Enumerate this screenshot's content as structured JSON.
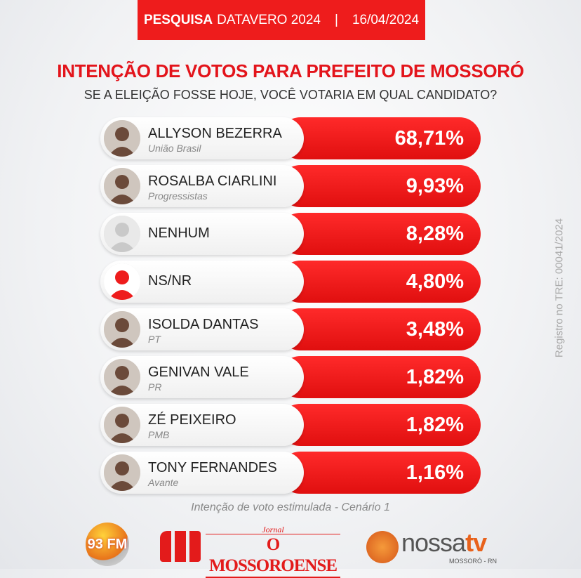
{
  "header": {
    "bold": "PESQUISA",
    "rest": "DATAVERO 2024",
    "sep": "|",
    "date": "16/04/2024"
  },
  "title": "INTENÇÃO DE VOTOS PARA PREFEITO DE MOSSORÓ",
  "subtitle": "SE A ELEIÇÃO FOSSE HOJE, VOCÊ VOTARIA EM QUAL CANDIDATO?",
  "colors": {
    "accent": "#ee1c1c",
    "title": "#e3141b"
  },
  "chart_data": {
    "type": "bar",
    "categories": [
      "ALLYSON BEZERRA",
      "ROSALBA CIARLINI",
      "NENHUM",
      "NS/NR",
      "ISOLDA DANTAS",
      "GENIVAN VALE",
      "ZÉ PEIXEIRO",
      "TONY FERNANDES"
    ],
    "parties": [
      "União Brasil",
      "Progressistas",
      "",
      "",
      "PT",
      "PR",
      "PMB",
      "Avante"
    ],
    "values": [
      68.71,
      9.93,
      8.28,
      4.8,
      3.48,
      1.82,
      1.82,
      1.16
    ],
    "labels": [
      "68,71%",
      "9,93%",
      "8,28%",
      "4,80%",
      "3,48%",
      "1,82%",
      "1,82%",
      "1,16%"
    ],
    "avatars": [
      "photo",
      "photo",
      "gray-person-icon",
      "red-person-icon",
      "photo",
      "photo",
      "photo",
      "photo"
    ]
  },
  "footnote": "Intenção de voto estimulada - Cenário 1",
  "registry": "Registro no TRE: 00041/2024",
  "logos": {
    "radio": "93 FM",
    "jornal_small": "Jornal",
    "jornal": "O MOSSOROENSE",
    "tv1": "nossa",
    "tv2": "tv",
    "tv_sub": "MOSSORÓ - RN"
  }
}
